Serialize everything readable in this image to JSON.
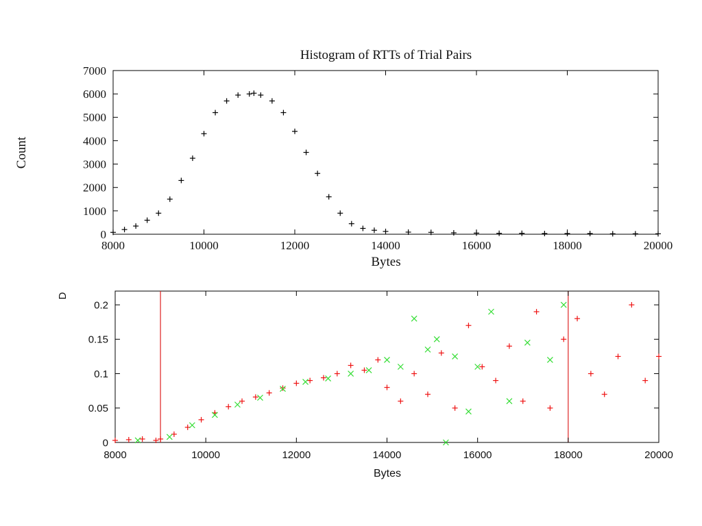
{
  "chart_data": [
    {
      "type": "scatter",
      "title": "Histogram of RTTs of Trial Pairs",
      "xlabel": "Bytes",
      "ylabel": "Count",
      "xlim": [
        8000,
        20000
      ],
      "ylim": [
        0,
        7000
      ],
      "xticks": [
        "8000",
        "10000",
        "12000",
        "14000",
        "16000",
        "18000",
        "20000"
      ],
      "yticks": [
        "0",
        "1000",
        "2000",
        "3000",
        "4000",
        "5000",
        "6000",
        "7000"
      ],
      "grid": false,
      "legend": "none",
      "marker": "plus",
      "color": "#000000",
      "series": [
        {
          "x": [
            8000,
            8250,
            8500,
            8750,
            9000,
            9250,
            9500,
            9750,
            10000,
            10250,
            10500,
            10750,
            11000,
            11100,
            11250,
            11500,
            11750,
            12000,
            12250,
            12500,
            12750,
            13000,
            13250,
            13500,
            13750,
            14000,
            14500,
            15000,
            15500,
            16000,
            16500,
            17000,
            17500,
            18000,
            18500,
            19000,
            19500,
            20000
          ],
          "y": [
            80,
            200,
            350,
            600,
            900,
            1500,
            2300,
            3250,
            4300,
            5200,
            5700,
            5950,
            6000,
            6030,
            5950,
            5700,
            5200,
            4400,
            3500,
            2600,
            1600,
            900,
            450,
            250,
            170,
            120,
            90,
            80,
            60,
            50,
            40,
            40,
            30,
            30,
            30,
            20,
            20,
            20
          ]
        }
      ]
    },
    {
      "type": "scatter",
      "title": "",
      "xlabel": "Bytes",
      "ylabel": "D",
      "xlim": [
        8000,
        20000
      ],
      "ylim": [
        0,
        0.22
      ],
      "xticks": [
        "8000",
        "10000",
        "12000",
        "14000",
        "16000",
        "18000",
        "20000"
      ],
      "yticks": [
        "0",
        "0.05",
        "0.1",
        "0.15",
        "0.2"
      ],
      "grid": false,
      "legend": "none",
      "vlines": [
        9000,
        18000
      ],
      "vline_color": "#dd2222",
      "series": [
        {
          "marker": "plus",
          "color": "#ee1111",
          "x": [
            8000,
            8300,
            8600,
            8900,
            9000,
            9300,
            9600,
            9900,
            10200,
            10500,
            10800,
            11100,
            11400,
            11700,
            12000,
            12300,
            12600,
            12900,
            13200,
            13500,
            13800,
            14000,
            14300,
            14600,
            14900,
            15200,
            15500,
            15800,
            16100,
            16400,
            16700,
            17000,
            17300,
            17600,
            17900,
            18200,
            18500,
            18800,
            19100,
            19400,
            19700,
            20000
          ],
          "y": [
            0.003,
            0.004,
            0.005,
            0.003,
            0.005,
            0.012,
            0.022,
            0.033,
            0.043,
            0.052,
            0.06,
            0.066,
            0.072,
            0.079,
            0.086,
            0.09,
            0.094,
            0.1,
            0.112,
            0.105,
            0.12,
            0.08,
            0.06,
            0.1,
            0.07,
            0.13,
            0.05,
            0.17,
            0.11,
            0.09,
            0.14,
            0.06,
            0.19,
            0.05,
            0.15,
            0.18,
            0.1,
            0.07,
            0.125,
            0.2,
            0.09,
            0.125
          ]
        },
        {
          "marker": "cross",
          "color": "#33dd33",
          "x": [
            8500,
            9200,
            9700,
            10200,
            10700,
            11200,
            11700,
            12200,
            12700,
            13200,
            13600,
            14000,
            14300,
            14600,
            14900,
            15100,
            15300,
            15500,
            15800,
            16000,
            16300,
            16700,
            17100,
            17600,
            17900
          ],
          "y": [
            0.003,
            0.008,
            0.025,
            0.04,
            0.055,
            0.065,
            0.078,
            0.088,
            0.093,
            0.1,
            0.105,
            0.12,
            0.11,
            0.18,
            0.135,
            0.15,
            0.0,
            0.125,
            0.045,
            0.11,
            0.19,
            0.06,
            0.145,
            0.12,
            0.2
          ]
        }
      ]
    }
  ]
}
